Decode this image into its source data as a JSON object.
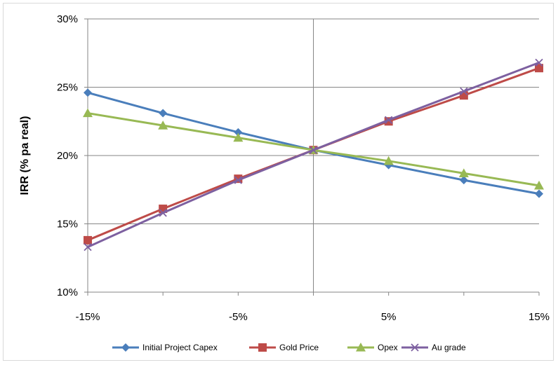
{
  "chart_data": {
    "type": "line",
    "ylabel": "IRR (% pa real)",
    "xlabel": "",
    "x": [
      -15,
      -10,
      -5,
      0,
      5,
      10,
      15
    ],
    "xlim": [
      -15,
      15
    ],
    "ylim": [
      10,
      30
    ],
    "x_tick_labels": [
      {
        "value": -15,
        "label": "-15%"
      },
      {
        "value": -5,
        "label": "-5%"
      },
      {
        "value": 5,
        "label": "5%"
      },
      {
        "value": 15,
        "label": "15%"
      }
    ],
    "y_tick_labels": [
      {
        "value": 10,
        "label": "10%"
      },
      {
        "value": 15,
        "label": "15%"
      },
      {
        "value": 20,
        "label": "20%"
      },
      {
        "value": 25,
        "label": "25%"
      },
      {
        "value": 30,
        "label": "30%"
      }
    ],
    "grid": "horizontal",
    "legend_position": "bottom",
    "series": [
      {
        "name": "Initial Project Capex",
        "color": "#4a7ebb",
        "marker": "diamond",
        "values": [
          24.6,
          23.1,
          21.7,
          20.4,
          19.3,
          18.2,
          17.2
        ]
      },
      {
        "name": "Gold Price",
        "color": "#be4b48",
        "marker": "square",
        "values": [
          13.8,
          16.1,
          18.3,
          20.4,
          22.5,
          24.4,
          26.4
        ]
      },
      {
        "name": "Opex",
        "color": "#98b954",
        "marker": "triangle",
        "values": [
          23.1,
          22.2,
          21.3,
          20.4,
          19.6,
          18.7,
          17.8
        ]
      },
      {
        "name": "Au grade",
        "color": "#7d60a0",
        "marker": "x",
        "values": [
          13.3,
          15.8,
          18.2,
          20.4,
          22.6,
          24.7,
          26.8
        ]
      }
    ]
  }
}
